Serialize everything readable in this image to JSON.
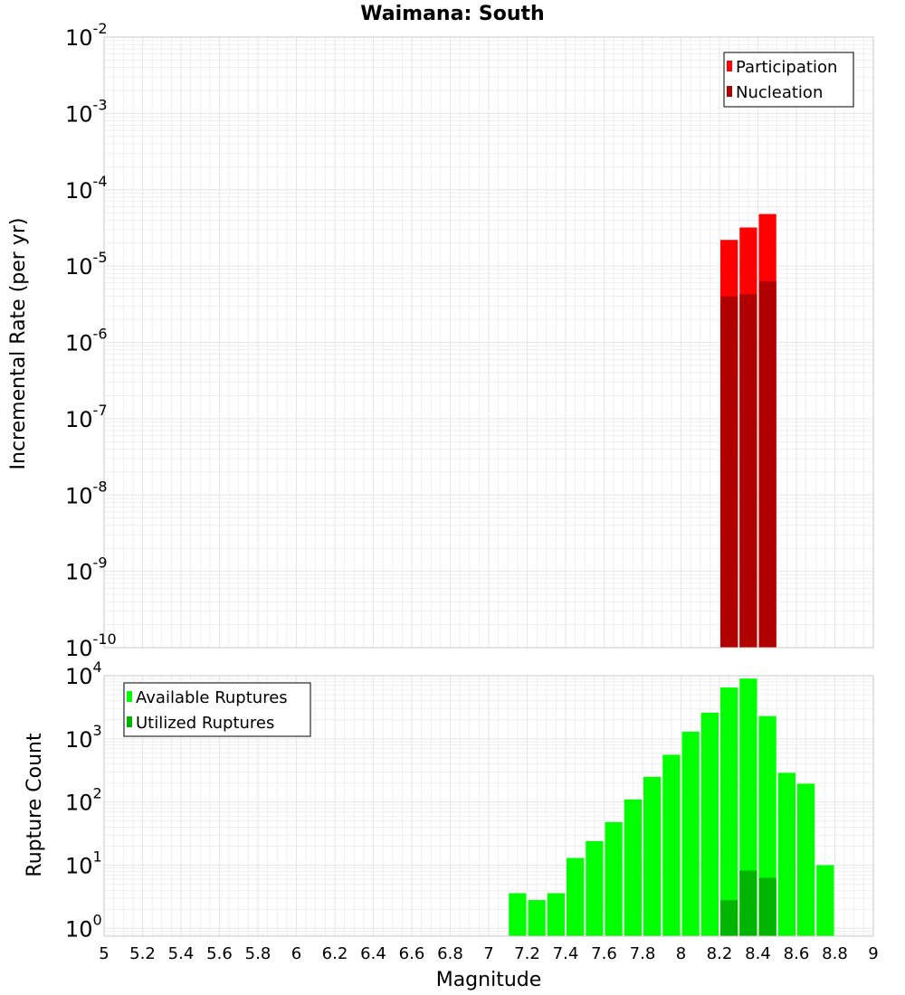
{
  "title": "Waimana: South",
  "colors": {
    "participation": "#ff0000",
    "nucleation": "#b00000",
    "available": "#00ff00",
    "utilized": "#00b400",
    "grid": "#e6e6e6",
    "frame": "#c8c8c8"
  },
  "chart_data": [
    {
      "type": "bar",
      "ylabel": "Incremental Rate (per yr)",
      "yscale": "log",
      "ylim": [
        1e-10,
        0.01
      ],
      "xlim": [
        5,
        9
      ],
      "grid": true,
      "legend_position": "top-right",
      "bin_width": 0.1,
      "series": [
        {
          "name": "Participation",
          "x": [
            8.25,
            8.35,
            8.45
          ],
          "values": [
            2.2e-05,
            3.2e-05,
            4.8e-05
          ]
        },
        {
          "name": "Nucleation",
          "x": [
            8.25,
            8.35,
            8.45
          ],
          "values": [
            4e-06,
            4.3e-06,
            6.3e-06
          ]
        }
      ]
    },
    {
      "type": "bar",
      "xlabel": "Magnitude",
      "ylabel": "Rupture Count",
      "yscale": "log",
      "ylim": [
        0.75,
        10000
      ],
      "xlim": [
        5,
        9
      ],
      "grid": true,
      "legend_position": "top-left",
      "bin_width": 0.1,
      "series": [
        {
          "name": "Available Ruptures",
          "x": [
            7.15,
            7.25,
            7.35,
            7.45,
            7.55,
            7.65,
            7.75,
            7.85,
            7.95,
            8.05,
            8.15,
            8.25,
            8.35,
            8.45,
            8.55,
            8.65,
            8.75
          ],
          "values": [
            3.6,
            2.8,
            3.6,
            13,
            24,
            48,
            110,
            250,
            560,
            1300,
            2600,
            6500,
            9000,
            2300,
            290,
            195,
            10
          ]
        },
        {
          "name": "Utilized Ruptures",
          "x": [
            8.25,
            8.35,
            8.45
          ],
          "values": [
            2.8,
            8.2,
            6.3
          ]
        }
      ]
    }
  ],
  "x_ticks": [
    "5",
    "5.2",
    "5.4",
    "5.6",
    "5.8",
    "6",
    "6.2",
    "6.4",
    "6.6",
    "6.8",
    "7",
    "7.2",
    "7.4",
    "7.6",
    "7.8",
    "8",
    "8.2",
    "8.4",
    "8.6",
    "8.8",
    "9"
  ],
  "top_y_ticks": [
    {
      "base": "10",
      "exp": "-2"
    },
    {
      "base": "10",
      "exp": "-3"
    },
    {
      "base": "10",
      "exp": "-4"
    },
    {
      "base": "10",
      "exp": "-5"
    },
    {
      "base": "10",
      "exp": "-6"
    },
    {
      "base": "10",
      "exp": "-7"
    },
    {
      "base": "10",
      "exp": "-8"
    },
    {
      "base": "10",
      "exp": "-9"
    },
    {
      "base": "10",
      "exp": "-10"
    }
  ],
  "bottom_y_ticks": [
    {
      "base": "10",
      "exp": "4"
    },
    {
      "base": "10",
      "exp": "3"
    },
    {
      "base": "10",
      "exp": "2"
    },
    {
      "base": "10",
      "exp": "1"
    },
    {
      "base": "10",
      "exp": "0"
    }
  ]
}
